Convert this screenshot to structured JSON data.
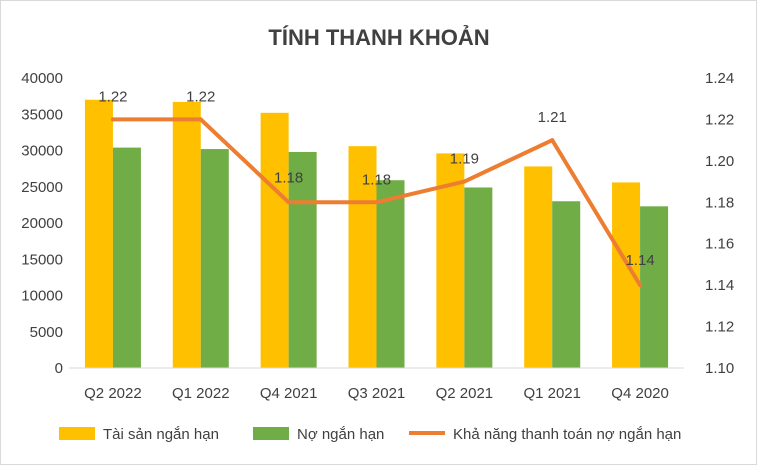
{
  "chart_data": {
    "type": "bar",
    "title": "TÍNH THANH KHOẢN",
    "categories": [
      "Q2 2022",
      "Q1 2022",
      "Q4 2021",
      "Q3 2021",
      "Q2 2021",
      "Q1 2021",
      "Q4 2020"
    ],
    "series": [
      {
        "name": "Tài sản ngắn hạn",
        "type": "bar",
        "axis": "left",
        "color": "#ffc000",
        "values": [
          37000,
          36700,
          35200,
          30600,
          29600,
          27800,
          25600
        ]
      },
      {
        "name": "Nợ ngắn hạn",
        "type": "bar",
        "axis": "left",
        "color": "#70ad47",
        "values": [
          30400,
          30200,
          29800,
          25900,
          24900,
          23000,
          22300
        ]
      },
      {
        "name": "Khả năng thanh toán nợ ngắn hạn",
        "type": "line",
        "axis": "right",
        "color": "#ed7d31",
        "values": [
          1.22,
          1.22,
          1.18,
          1.18,
          1.19,
          1.21,
          1.14
        ],
        "labels": [
          "1.22",
          "1.22",
          "1.18",
          "1.18",
          "1.19",
          "1.21",
          "1.14"
        ]
      }
    ],
    "ylim_left": [
      0,
      40000
    ],
    "yticks_left": [
      "0",
      "5000",
      "10000",
      "15000",
      "20000",
      "25000",
      "30000",
      "35000",
      "40000"
    ],
    "ylim_right": [
      1.1,
      1.24
    ],
    "yticks_right": [
      "1.10",
      "1.12",
      "1.14",
      "1.16",
      "1.18",
      "1.20",
      "1.22",
      "1.24"
    ],
    "grid": false,
    "legend_position": "bottom"
  }
}
